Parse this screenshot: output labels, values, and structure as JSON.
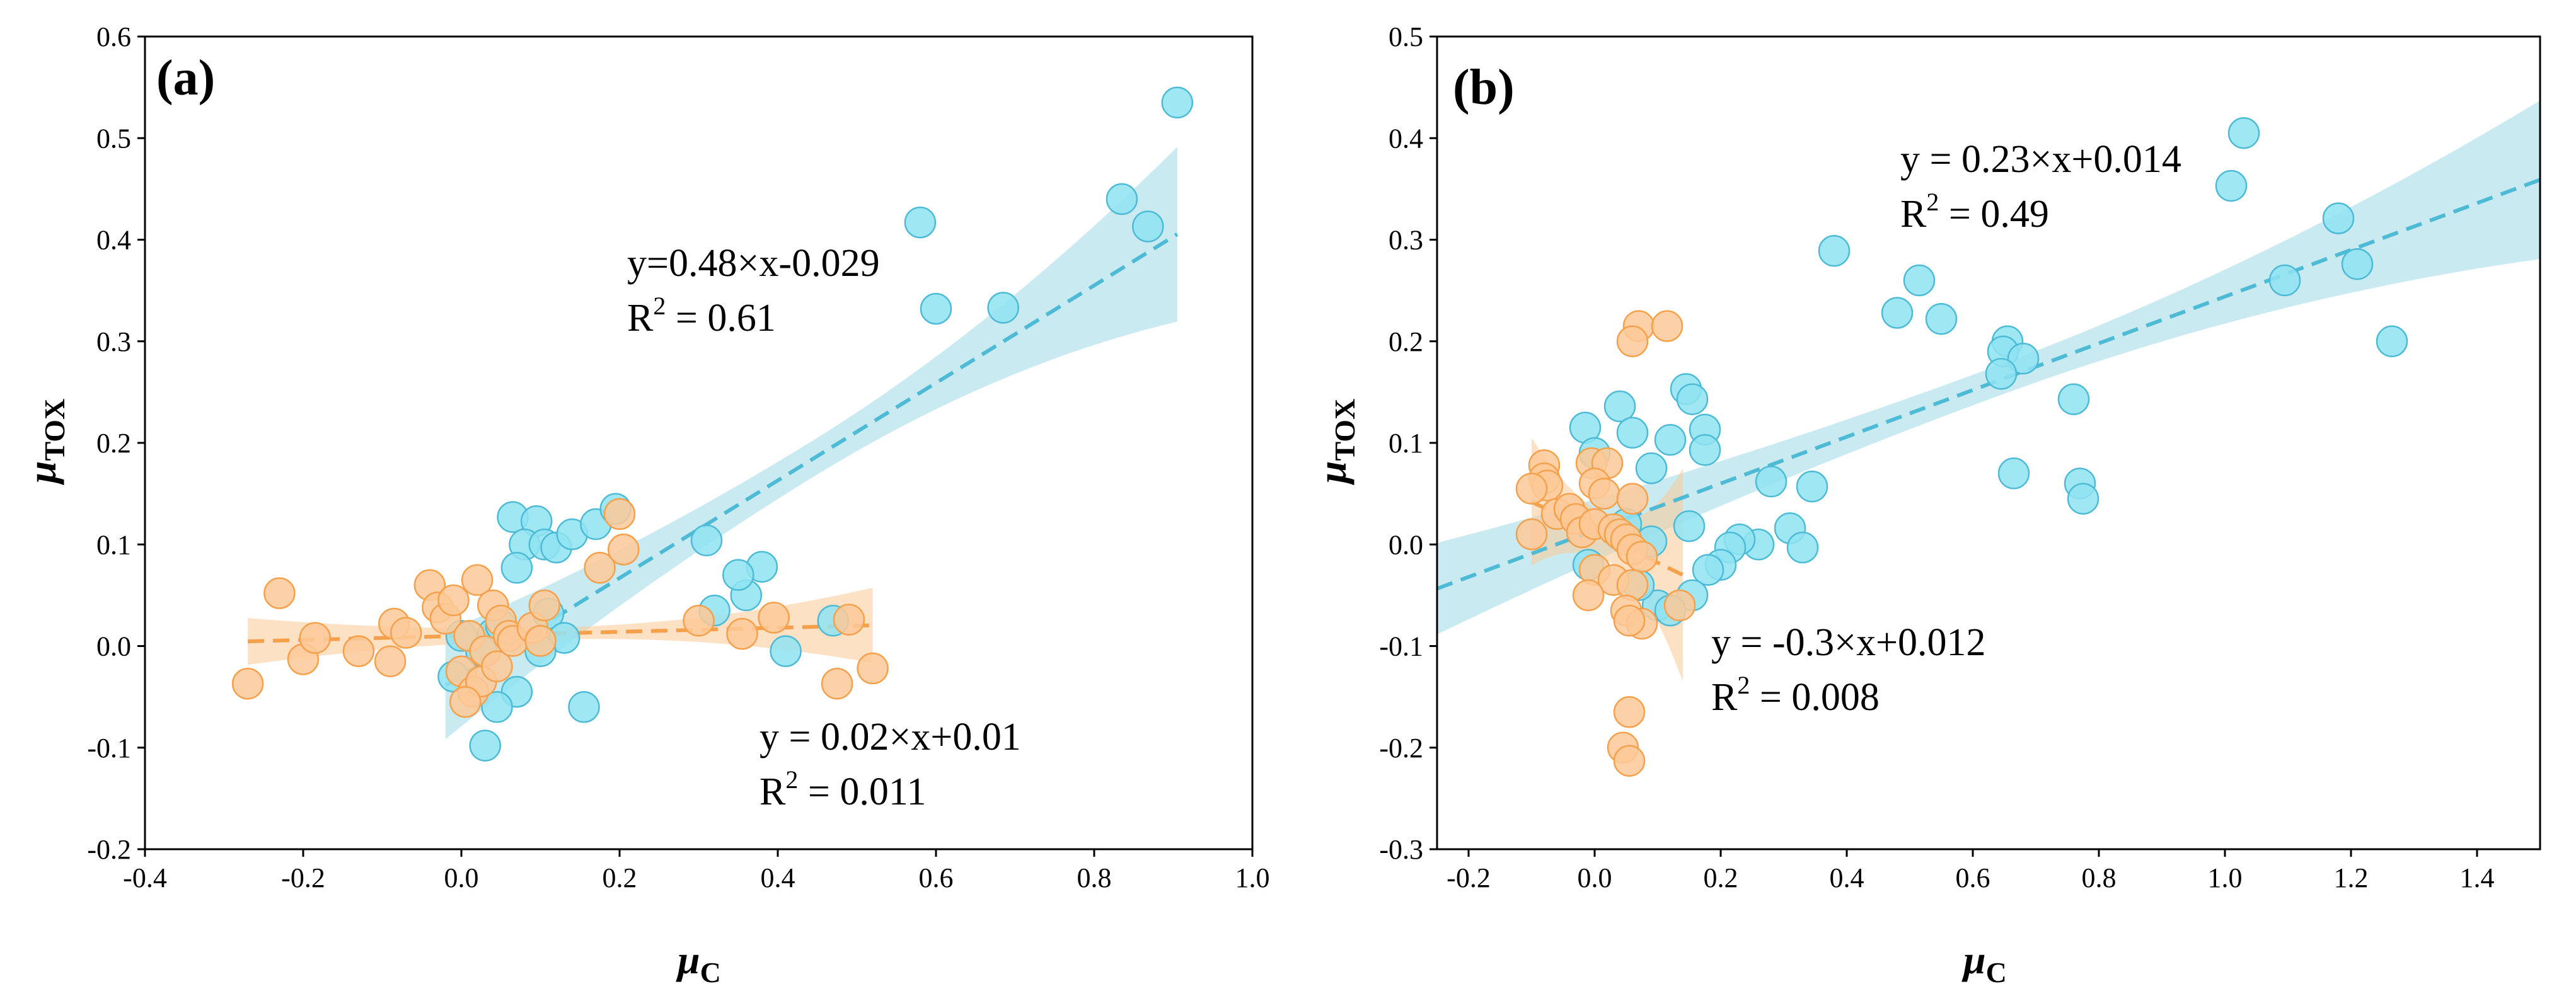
{
  "chart_data": [
    {
      "type": "scatter",
      "panel_label": "(a)",
      "xlabel": "μ",
      "xlabel_sub": "C",
      "ylabel": "μ",
      "ylabel_sub": "TOX",
      "xlim": [
        -0.4,
        1.0
      ],
      "ylim": [
        -0.2,
        0.6
      ],
      "xticks": [
        -0.4,
        -0.2,
        0.0,
        0.2,
        0.4,
        0.6,
        0.8,
        1.0
      ],
      "xtick_labels": [
        "-0.4",
        "-0.2",
        "0.0",
        "0.2",
        "0.4",
        "0.6",
        "0.8",
        "1.0"
      ],
      "yticks": [
        -0.2,
        -0.1,
        0.0,
        0.1,
        0.2,
        0.3,
        0.4,
        0.5,
        0.6
      ],
      "ytick_labels": [
        "-0.2",
        "-0.1",
        "0.0",
        "0.1",
        "0.2",
        "0.3",
        "0.4",
        "0.5",
        "0.6"
      ],
      "series": [
        {
          "name": "blue",
          "color": "#4dbbd5",
          "fill": "#8fe3f2",
          "band_color": "#9fd8e8",
          "fit": {
            "slope": 0.48,
            "intercept": -0.029,
            "x_range": [
              -0.02,
              0.905
            ],
            "band_halfwidth_ends": [
              0.053,
              0.086
            ],
            "band_halfwidth_center": 0.018
          },
          "equation": "y=0.48×x-0.029",
          "r2_label": "R",
          "r2_sup": "2",
          "r2_value": " = 0.61",
          "points": [
            [
              0.905,
              0.535
            ],
            [
              0.835,
              0.44
            ],
            [
              0.868,
              0.413
            ],
            [
              0.58,
              0.417
            ],
            [
              0.6,
              0.332
            ],
            [
              0.685,
              0.333
            ],
            [
              0.065,
              0.127
            ],
            [
              0.095,
              0.123
            ],
            [
              0.08,
              0.1
            ],
            [
              0.105,
              0.1
            ],
            [
              0.12,
              0.097
            ],
            [
              0.14,
              0.11
            ],
            [
              0.17,
              0.12
            ],
            [
              0.195,
              0.135
            ],
            [
              0.07,
              0.077
            ],
            [
              0.31,
              0.104
            ],
            [
              0.38,
              0.078
            ],
            [
              0.36,
              0.05
            ],
            [
              0.35,
              0.07
            ],
            [
              0.32,
              0.035
            ],
            [
              0.41,
              -0.005
            ],
            [
              0.47,
              0.025
            ],
            [
              0.04,
              0.012
            ],
            [
              0.025,
              -0.005
            ],
            [
              0.05,
              0.02
            ],
            [
              0.11,
              0.032
            ],
            [
              0.13,
              0.008
            ],
            [
              -0.01,
              -0.03
            ],
            [
              0.0,
              0.01
            ],
            [
              0.07,
              -0.045
            ],
            [
              0.045,
              -0.06
            ],
            [
              0.155,
              -0.06
            ],
            [
              0.03,
              -0.098
            ],
            [
              0.1,
              -0.005
            ]
          ]
        },
        {
          "name": "orange",
          "color": "#f5a04a",
          "fill": "#fdc998",
          "band_color": "#f9c896",
          "fit": {
            "slope": 0.02,
            "intercept": 0.01,
            "x_range": [
              -0.27,
              0.52
            ],
            "band_halfwidth_ends": [
              0.023,
              0.037
            ],
            "band_halfwidth_center": 0.006
          },
          "equation": "y = 0.02×x+0.01",
          "r2_label": "R",
          "r2_sup": "2",
          "r2_value": " = 0.011",
          "points": [
            [
              -0.27,
              -0.037
            ],
            [
              -0.23,
              0.052
            ],
            [
              -0.2,
              -0.013
            ],
            [
              -0.185,
              0.008
            ],
            [
              -0.13,
              -0.005
            ],
            [
              -0.09,
              -0.015
            ],
            [
              -0.085,
              0.022
            ],
            [
              -0.07,
              0.013
            ],
            [
              -0.04,
              0.06
            ],
            [
              -0.03,
              0.038
            ],
            [
              -0.02,
              0.027
            ],
            [
              -0.01,
              0.045
            ],
            [
              0.0,
              -0.025
            ],
            [
              0.01,
              0.01
            ],
            [
              0.02,
              0.065
            ],
            [
              0.03,
              -0.005
            ],
            [
              0.04,
              0.04
            ],
            [
              0.05,
              0.025
            ],
            [
              0.06,
              0.01
            ],
            [
              0.015,
              -0.045
            ],
            [
              0.025,
              -0.035
            ],
            [
              0.045,
              -0.02
            ],
            [
              0.065,
              0.005
            ],
            [
              0.09,
              0.018
            ],
            [
              0.1,
              0.005
            ],
            [
              0.105,
              0.04
            ],
            [
              0.175,
              0.077
            ],
            [
              0.2,
              0.13
            ],
            [
              0.205,
              0.095
            ],
            [
              0.3,
              0.025
            ],
            [
              0.355,
              0.012
            ],
            [
              0.395,
              0.028
            ],
            [
              0.475,
              -0.037
            ],
            [
              0.49,
              0.026
            ],
            [
              0.52,
              -0.022
            ],
            [
              0.005,
              -0.055
            ]
          ]
        }
      ],
      "annotations": []
    },
    {
      "type": "scatter",
      "panel_label": "(b)",
      "xlabel": "μ",
      "xlabel_sub": "C",
      "ylabel": "μ",
      "ylabel_sub": "TOX",
      "xlim": [
        -0.25,
        1.5
      ],
      "ylim": [
        -0.3,
        0.5
      ],
      "xticks": [
        -0.2,
        0.0,
        0.2,
        0.4,
        0.6,
        0.8,
        1.0,
        1.2,
        1.4
      ],
      "xtick_labels": [
        "-0.2",
        "0.0",
        "0.2",
        "0.4",
        "0.6",
        "0.8",
        "1.0",
        "1.2",
        "1.4"
      ],
      "yticks": [
        -0.3,
        -0.2,
        -0.1,
        0.0,
        0.1,
        0.2,
        0.3,
        0.4,
        0.5
      ],
      "ytick_labels": [
        "-0.3",
        "-0.2",
        "-0.1",
        "0.0",
        "0.1",
        "0.2",
        "0.3",
        "0.4",
        "0.5"
      ],
      "series": [
        {
          "name": "blue",
          "color": "#4dbbd5",
          "fill": "#8fe3f2",
          "band_color": "#9fd8e8",
          "fit": {
            "slope": 0.23,
            "intercept": 0.014,
            "x_range": [
              -0.25,
              1.5
            ],
            "band_halfwidth_ends": [
              0.045,
              0.078
            ],
            "band_halfwidth_center": 0.015
          },
          "equation": "y = 0.23×x+0.014",
          "r2_label": "R",
          "r2_sup": "2",
          "r2_value": " = 0.49",
          "points": [
            [
              1.03,
              0.405
            ],
            [
              1.01,
              0.353
            ],
            [
              1.18,
              0.321
            ],
            [
              1.21,
              0.276
            ],
            [
              1.095,
              0.26
            ],
            [
              1.265,
              0.2
            ],
            [
              0.38,
              0.289
            ],
            [
              0.515,
              0.26
            ],
            [
              0.48,
              0.228
            ],
            [
              0.55,
              0.222
            ],
            [
              0.655,
              0.2
            ],
            [
              0.648,
              0.19
            ],
            [
              0.68,
              0.183
            ],
            [
              0.645,
              0.168
            ],
            [
              0.76,
              0.143
            ],
            [
              0.665,
              0.07
            ],
            [
              0.77,
              0.06
            ],
            [
              0.775,
              0.045
            ],
            [
              0.145,
              0.153
            ],
            [
              0.155,
              0.143
            ],
            [
              0.04,
              0.136
            ],
            [
              -0.015,
              0.115
            ],
            [
              0.06,
              0.11
            ],
            [
              0.12,
              0.103
            ],
            [
              0.175,
              0.113
            ],
            [
              0.175,
              0.093
            ],
            [
              0.0,
              0.09
            ],
            [
              0.09,
              0.075
            ],
            [
              0.28,
              0.062
            ],
            [
              0.345,
              0.057
            ],
            [
              0.15,
              0.018
            ],
            [
              0.31,
              0.016
            ],
            [
              0.33,
              -0.003
            ],
            [
              0.26,
              0.0
            ],
            [
              0.23,
              0.005
            ],
            [
              0.215,
              -0.003
            ],
            [
              0.2,
              -0.02
            ],
            [
              0.18,
              -0.025
            ],
            [
              0.155,
              -0.05
            ],
            [
              0.09,
              0.003
            ],
            [
              0.04,
              0.01
            ],
            [
              0.05,
              0.02
            ],
            [
              -0.01,
              -0.02
            ],
            [
              0.1,
              -0.06
            ],
            [
              0.07,
              -0.04
            ],
            [
              0.12,
              -0.065
            ]
          ]
        },
        {
          "name": "orange",
          "color": "#f5a04a",
          "fill": "#fdc998",
          "band_color": "#f9c896",
          "fit": {
            "slope": -0.3,
            "intercept": 0.012,
            "x_range": [
              -0.1,
              0.14
            ],
            "band_halfwidth_ends": [
              0.063,
              0.105
            ],
            "band_halfwidth_center": 0.022
          },
          "equation": "y = -0.3×x+0.012",
          "r2_label": "R",
          "r2_sup": "2",
          "r2_value": " = 0.008",
          "points": [
            [
              0.07,
              0.215
            ],
            [
              0.115,
              0.215
            ],
            [
              0.06,
              0.2
            ],
            [
              -0.08,
              0.078
            ],
            [
              -0.08,
              0.065
            ],
            [
              -0.075,
              0.058
            ],
            [
              -0.1,
              0.055
            ],
            [
              -0.005,
              0.08
            ],
            [
              0.02,
              0.08
            ],
            [
              0.0,
              0.06
            ],
            [
              0.015,
              0.05
            ],
            [
              0.06,
              0.045
            ],
            [
              -0.06,
              0.03
            ],
            [
              -0.04,
              0.035
            ],
            [
              -0.03,
              0.025
            ],
            [
              -0.02,
              0.012
            ],
            [
              0.0,
              0.02
            ],
            [
              0.03,
              0.015
            ],
            [
              0.04,
              0.01
            ],
            [
              -0.1,
              0.01
            ],
            [
              0.05,
              0.005
            ],
            [
              0.06,
              -0.005
            ],
            [
              0.075,
              -0.012
            ],
            [
              0.0,
              -0.025
            ],
            [
              0.03,
              -0.035
            ],
            [
              0.06,
              -0.04
            ],
            [
              -0.01,
              -0.05
            ],
            [
              0.05,
              -0.065
            ],
            [
              0.075,
              -0.078
            ],
            [
              0.055,
              -0.075
            ],
            [
              0.135,
              -0.06
            ],
            [
              0.055,
              -0.165
            ],
            [
              0.045,
              -0.2
            ],
            [
              0.055,
              -0.213
            ]
          ]
        }
      ],
      "annotations": []
    }
  ]
}
